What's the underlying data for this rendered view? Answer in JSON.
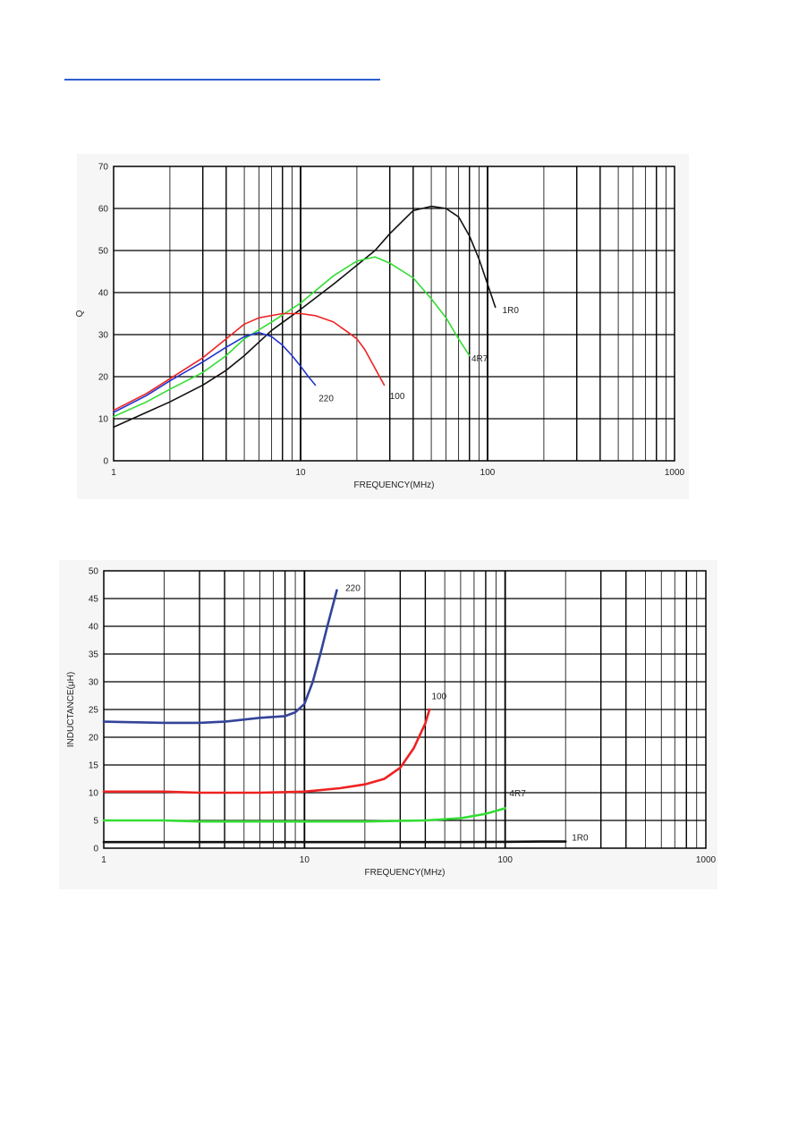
{
  "page": {
    "header_rule_color": "#2f5fd0"
  },
  "chart_data": [
    {
      "type": "line",
      "ylabel": "Q",
      "xlabel": "FREQUENCY(MHz)",
      "xscale": "log",
      "xlim": [
        1,
        1000
      ],
      "ylim": [
        0,
        70
      ],
      "grid": true,
      "x_ticks": [
        "1",
        "10",
        "100",
        "1000"
      ],
      "y_ticks": [
        "0",
        "10",
        "20",
        "30",
        "40",
        "50",
        "60",
        "70"
      ],
      "series": [
        {
          "name": "1R0",
          "color": "#111111",
          "points": [
            [
              1,
              8
            ],
            [
              1.5,
              11.5
            ],
            [
              2,
              14
            ],
            [
              3,
              18
            ],
            [
              4,
              21.5
            ],
            [
              5,
              25
            ],
            [
              7,
              31
            ],
            [
              10,
              36
            ],
            [
              15,
              42
            ],
            [
              20,
              46.5
            ],
            [
              25,
              50
            ],
            [
              30,
              54
            ],
            [
              40,
              59.5
            ],
            [
              50,
              60.5
            ],
            [
              60,
              60
            ],
            [
              70,
              58
            ],
            [
              80,
              53.5
            ],
            [
              90,
              48
            ],
            [
              100,
              42
            ],
            [
              110,
              36.5
            ]
          ]
        },
        {
          "name": "4R7",
          "color": "#33dd33",
          "points": [
            [
              1,
              10.5
            ],
            [
              1.5,
              14
            ],
            [
              2,
              17
            ],
            [
              3,
              21
            ],
            [
              4,
              25
            ],
            [
              5,
              29
            ],
            [
              7,
              33
            ],
            [
              10,
              37.5
            ],
            [
              15,
              44
            ],
            [
              20,
              47.5
            ],
            [
              25,
              48.5
            ],
            [
              30,
              47
            ],
            [
              40,
              43.5
            ],
            [
              50,
              38.5
            ],
            [
              60,
              34
            ],
            [
              70,
              29
            ],
            [
              80,
              25
            ]
          ]
        },
        {
          "name": "100",
          "color": "#ee2222",
          "points": [
            [
              1,
              12
            ],
            [
              1.5,
              16
            ],
            [
              2,
              19.5
            ],
            [
              3,
              24.5
            ],
            [
              4,
              29
            ],
            [
              5,
              32.5
            ],
            [
              6,
              34
            ],
            [
              8,
              35
            ],
            [
              10,
              35
            ],
            [
              12,
              34.5
            ],
            [
              15,
              33
            ],
            [
              18,
              30.5
            ],
            [
              20,
              29
            ],
            [
              22,
              26.5
            ],
            [
              25,
              22
            ],
            [
              28,
              18
            ]
          ]
        },
        {
          "name": "220",
          "color": "#2233cc",
          "points": [
            [
              1,
              11.5
            ],
            [
              1.5,
              15.5
            ],
            [
              2,
              19
            ],
            [
              3,
              23.5
            ],
            [
              4,
              27
            ],
            [
              5,
              29.5
            ],
            [
              6,
              30.5
            ],
            [
              7,
              29.5
            ],
            [
              8,
              27.5
            ],
            [
              9,
              25
            ],
            [
              10,
              22.5
            ],
            [
              11,
              20
            ],
            [
              12,
              18
            ]
          ]
        }
      ],
      "labels": [
        {
          "text": "1R0",
          "x": 120,
          "y": 36
        },
        {
          "text": "4R7",
          "x": 82,
          "y": 24.5
        },
        {
          "text": "100",
          "x": 30,
          "y": 15.5
        },
        {
          "text": "220",
          "x": 12.5,
          "y": 15
        }
      ]
    },
    {
      "type": "line",
      "ylabel": "INDUCTANCE(μH)",
      "xlabel": "FREQUENCY(MHz)",
      "xscale": "log",
      "xlim": [
        1,
        1000
      ],
      "ylim": [
        0,
        50
      ],
      "grid": true,
      "x_ticks": [
        "1",
        "10",
        "100",
        "1000"
      ],
      "y_ticks": [
        "0",
        "5",
        "10",
        "15",
        "20",
        "25",
        "30",
        "35",
        "40",
        "45",
        "50"
      ],
      "series": [
        {
          "name": "1R0",
          "color": "#111111",
          "points": [
            [
              1,
              1.1
            ],
            [
              10,
              1.1
            ],
            [
              50,
              1.1
            ],
            [
              100,
              1.15
            ],
            [
              150,
              1.2
            ],
            [
              200,
              1.2
            ]
          ]
        },
        {
          "name": "4R7",
          "color": "#33dd33",
          "points": [
            [
              1,
              5
            ],
            [
              2,
              5
            ],
            [
              3,
              4.8
            ],
            [
              10,
              4.8
            ],
            [
              20,
              4.8
            ],
            [
              40,
              5
            ],
            [
              60,
              5.4
            ],
            [
              80,
              6.2
            ],
            [
              100,
              7.2
            ]
          ]
        },
        {
          "name": "100",
          "color": "#ee2222",
          "points": [
            [
              1,
              10.2
            ],
            [
              2,
              10.2
            ],
            [
              3,
              10
            ],
            [
              6,
              10
            ],
            [
              10,
              10.2
            ],
            [
              15,
              10.8
            ],
            [
              20,
              11.5
            ],
            [
              25,
              12.5
            ],
            [
              30,
              14.5
            ],
            [
              35,
              18
            ],
            [
              40,
              22.5
            ],
            [
              42,
              25
            ]
          ]
        },
        {
          "name": "220",
          "color": "#334499",
          "points": [
            [
              1,
              22.8
            ],
            [
              2,
              22.6
            ],
            [
              3,
              22.6
            ],
            [
              4,
              22.8
            ],
            [
              6,
              23.5
            ],
            [
              8,
              23.8
            ],
            [
              9,
              24.5
            ],
            [
              10,
              26
            ],
            [
              11,
              30
            ],
            [
              12,
              35
            ],
            [
              13,
              40
            ],
            [
              14.5,
              46.5
            ]
          ]
        }
      ],
      "labels": [
        {
          "text": "220",
          "x": 16,
          "y": 47
        },
        {
          "text": "100",
          "x": 43,
          "y": 27.5
        },
        {
          "text": "4R7",
          "x": 105,
          "y": 10
        },
        {
          "text": "1R0",
          "x": 215,
          "y": 2
        }
      ]
    }
  ]
}
